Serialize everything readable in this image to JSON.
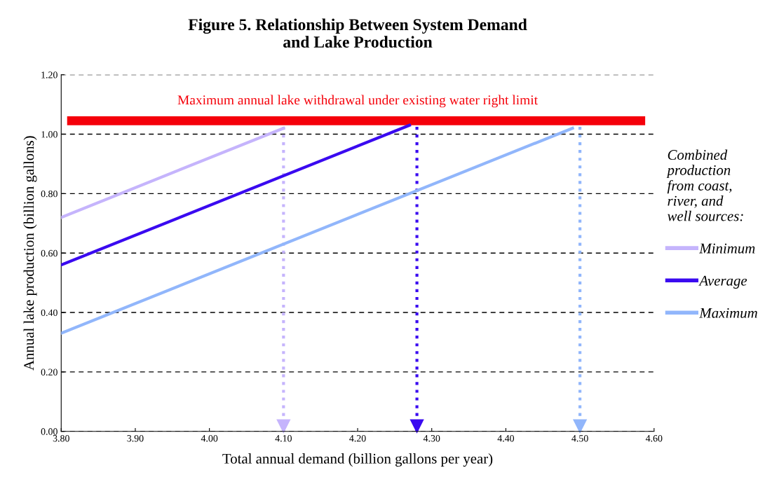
{
  "chart_data": {
    "type": "line",
    "title": "Figure 5. Relationship Between System Demand\nand Lake Production",
    "xlabel": "Total annual demand (billion gallons per year)",
    "ylabel": "Annual lake production (billion gallons)",
    "legend_title": "Combined\nproduction\nfrom coast,\nriver, and\nwell sources:",
    "series": [
      {
        "name": "Minimum",
        "color": "#c5b4fc",
        "x": [
          3.8,
          4.1
        ],
        "values": [
          0.72,
          1.02
        ]
      },
      {
        "name": "Average",
        "color": "#3a0af0",
        "x": [
          3.8,
          4.27
        ],
        "values": [
          0.56,
          1.03
        ]
      },
      {
        "name": "Maximum",
        "color": "#91b6fb",
        "x": [
          3.8,
          4.49
        ],
        "values": [
          0.33,
          1.02
        ]
      }
    ],
    "bands": [
      {
        "axis": "y",
        "from": 1.03,
        "to": 1.06,
        "label": "Maximum annual lake withdrawal under existing water right limit",
        "color": "#f5000a"
      }
    ],
    "ref_lines": [
      {
        "axis": "x",
        "value": 4.1,
        "color": "#c5b4fc",
        "line_style": "dotted"
      },
      {
        "axis": "x",
        "value": 4.28,
        "color": "#3a0af0",
        "line_style": "dotted"
      },
      {
        "axis": "x",
        "value": 4.5,
        "color": "#91b6fb",
        "line_style": "dotted"
      }
    ],
    "xlim": [
      3.8,
      4.6
    ],
    "xticks": [
      {
        "value": 3.8,
        "label": "3.80"
      },
      {
        "value": 3.9,
        "label": "3.90"
      },
      {
        "value": 4.0,
        "label": "4.00"
      },
      {
        "value": 4.1,
        "label": "4.10"
      },
      {
        "value": 4.2,
        "label": "4.20"
      },
      {
        "value": 4.3,
        "label": "4.30"
      },
      {
        "value": 4.4,
        "label": "4.40"
      },
      {
        "value": 4.5,
        "label": "4.50"
      },
      {
        "value": 4.6,
        "label": "4.60"
      }
    ],
    "ylim": [
      0,
      1.2
    ],
    "yticks": [
      {
        "value": 0,
        "label": "0.00"
      },
      {
        "value": 0.2,
        "label": "0.20"
      },
      {
        "value": 0.4,
        "label": "0.40"
      },
      {
        "value": 0.6,
        "label": "0.60"
      },
      {
        "value": 0.8,
        "label": "0.80"
      },
      {
        "value": 1.0,
        "label": "1.00"
      },
      {
        "value": 1.2,
        "label": "1.20"
      }
    ],
    "grid": "y",
    "legend": "right",
    "marker": "none",
    "line_style": "solid"
  }
}
